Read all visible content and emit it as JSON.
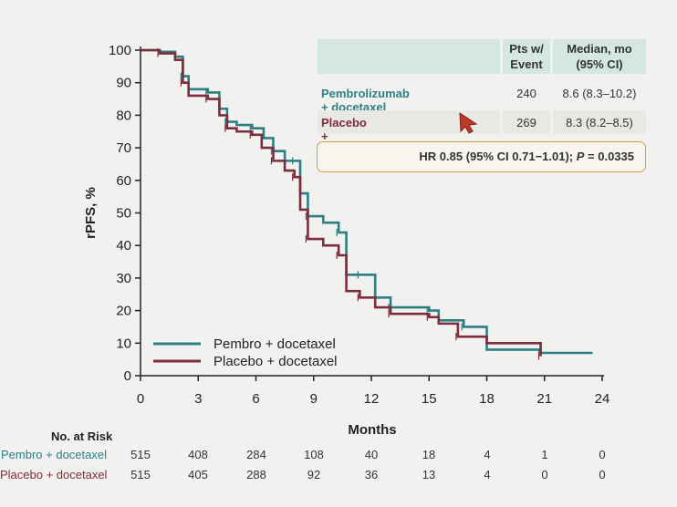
{
  "colors": {
    "pembro": "#2d7f83",
    "placebo": "#7d2d3d",
    "axis": "#222222",
    "header_bg": "#d4e7e0",
    "hr_border": "#c9a24a"
  },
  "chart_data": {
    "type": "line",
    "title": "",
    "xlabel": "Months",
    "ylabel": "rPFS, %",
    "xlim": [
      0,
      24
    ],
    "ylim": [
      0,
      100
    ],
    "xticks": [
      "0",
      "3",
      "6",
      "9",
      "12",
      "15",
      "18",
      "21",
      "24"
    ],
    "yticks": [
      "0",
      "10",
      "20",
      "30",
      "40",
      "50",
      "60",
      "70",
      "80",
      "90",
      "100"
    ],
    "legend_position": "bottom-left",
    "series": [
      {
        "name": "Pembro + docetaxel",
        "color": "#2d7f83",
        "x": [
          0,
          1,
          1.8,
          2.2,
          2.5,
          3.5,
          4.1,
          4.5,
          5.0,
          5.8,
          6.4,
          6.9,
          7.5,
          8.0,
          8.3,
          8.7,
          9.5,
          10.3,
          10.7,
          11.4,
          12.2,
          13.0,
          14.0,
          15.0,
          15.5,
          16.8,
          18.0,
          20.8,
          23.5
        ],
        "y": [
          100,
          99.5,
          98,
          92,
          88,
          87,
          82,
          78,
          77,
          76,
          73,
          69,
          66,
          66,
          56,
          49,
          47,
          44,
          31,
          31,
          24,
          21,
          21,
          20,
          17,
          15,
          8,
          7,
          7
        ]
      },
      {
        "name": "Placebo + docetaxel",
        "color": "#7d2d3d",
        "x": [
          0,
          1,
          1.8,
          2.2,
          2.5,
          3.5,
          4.1,
          4.5,
          5.0,
          5.8,
          6.3,
          6.9,
          7.5,
          8.0,
          8.3,
          8.7,
          9.5,
          10.3,
          10.7,
          11.4,
          12.2,
          13.0,
          14.0,
          15.0,
          15.5,
          16.5,
          18.0,
          20.8
        ],
        "y": [
          100,
          99,
          97,
          90,
          86,
          85,
          80,
          76,
          75,
          74,
          70,
          66,
          63,
          61,
          51,
          42,
          40,
          37,
          26,
          24,
          21,
          19,
          19,
          18,
          16,
          12,
          10,
          6
        ]
      }
    ]
  },
  "summary_table": {
    "columns": [
      "Pts w/\nEvent",
      "Median, mo\n(95% CI)"
    ],
    "col1_line1": "Pts w/",
    "col1_line2": "Event",
    "col2_line1": "Median, mo",
    "col2_line2": "(95% CI)",
    "rows": [
      {
        "label": "Pembrolizumab + docetaxel",
        "events": "240",
        "median": "8.6 (8.3–10.2)"
      },
      {
        "label": "Placebo + docetaxel",
        "events": "269",
        "median": "8.3 (8.2–8.5)"
      }
    ]
  },
  "hr_text_main": "HR 0.85 (95% CI 0.71−1.01); ",
  "hr_text_p_italic": "P",
  "hr_text_p_value": " = 0.0335",
  "risk_table": {
    "title": "No. at Risk",
    "rows": [
      {
        "label": "Pembro + docetaxel",
        "values": [
          "515",
          "408",
          "284",
          "108",
          "40",
          "18",
          "4",
          "1",
          "0"
        ]
      },
      {
        "label": "Placebo + docetaxel",
        "values": [
          "515",
          "405",
          "288",
          "92",
          "36",
          "13",
          "4",
          "0",
          "0"
        ]
      }
    ]
  }
}
